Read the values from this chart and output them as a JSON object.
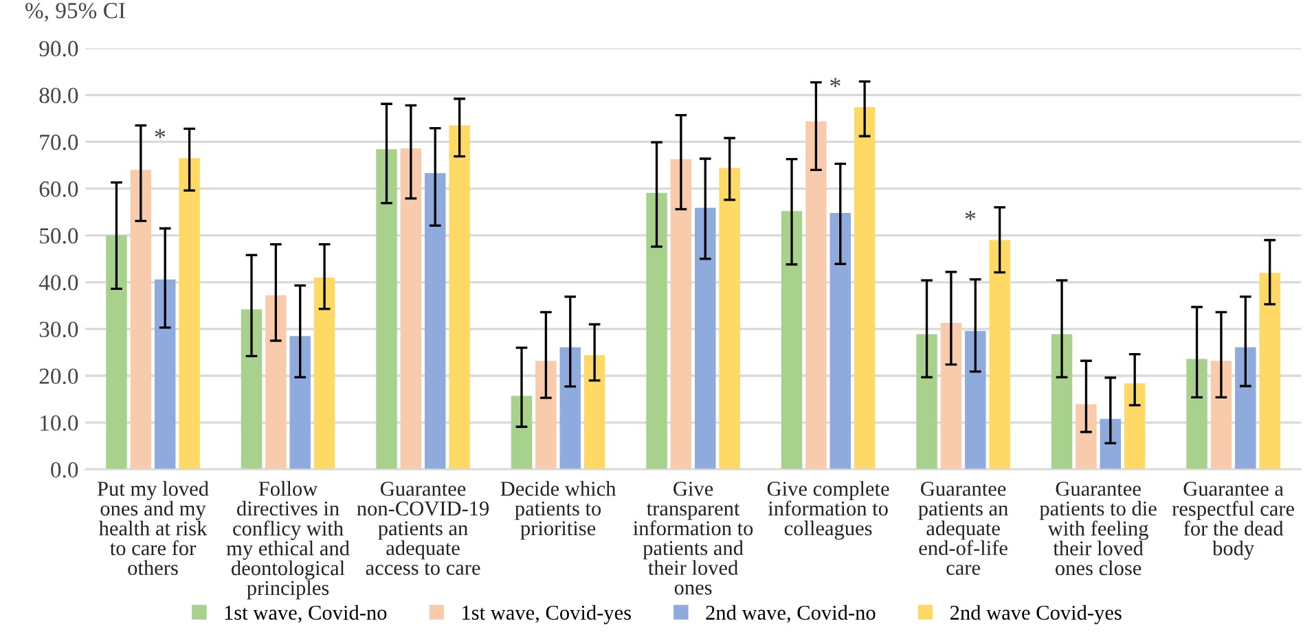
{
  "chart_data": {
    "type": "bar",
    "ylabel": "%, 95% CI",
    "categories": [
      "Put my loved ones and my health at risk to care for others",
      "Follow directives in conflicy with my ethical and deontological principles",
      "Guarantee non-COVID-19 patients an adequate access to care",
      "Decide which patients to prioritise",
      "Give transparent information to patients and their loved ones",
      "Give complete information to colleagues",
      "Guarantee patients an adequate end-of-life care",
      "Guarantee patients to die with feeling their loved ones close",
      "Guarantee a respectful care for the dead body"
    ],
    "series": [
      {
        "name": "1st wave, Covid-no",
        "color": "#a9d18e",
        "values": [
          50.0,
          34.2,
          68.4,
          15.7,
          59.1,
          55.2,
          28.9,
          28.9,
          23.6
        ],
        "errors": [
          [
            38.6,
            61.3
          ],
          [
            24.2,
            45.8
          ],
          [
            56.9,
            78.1
          ],
          [
            9.1,
            26.0
          ],
          [
            47.6,
            69.9
          ],
          [
            43.8,
            66.3
          ],
          [
            19.7,
            40.4
          ],
          [
            19.7,
            40.4
          ],
          [
            15.4,
            34.7
          ]
        ]
      },
      {
        "name": "1st wave, Covid-yes",
        "color": "#f8cbad",
        "values": [
          64.0,
          37.2,
          68.6,
          23.2,
          66.3,
          74.4,
          31.3,
          13.9,
          23.2
        ],
        "errors": [
          [
            53.1,
            73.5
          ],
          [
            27.5,
            48.1
          ],
          [
            57.9,
            77.8
          ],
          [
            15.3,
            33.6
          ],
          [
            55.6,
            75.7
          ],
          [
            64.0,
            82.7
          ],
          [
            22.4,
            42.2
          ],
          [
            8.0,
            23.2
          ],
          [
            15.4,
            33.6
          ]
        ]
      },
      {
        "name": "2nd wave, Covid-no",
        "color": "#8faadc",
        "values": [
          40.6,
          28.5,
          63.3,
          26.1,
          55.9,
          54.8,
          29.6,
          10.8,
          26.1
        ],
        "errors": [
          [
            30.3,
            51.5
          ],
          [
            19.7,
            39.3
          ],
          [
            52.1,
            72.9
          ],
          [
            17.7,
            36.9
          ],
          [
            45.0,
            66.4
          ],
          [
            43.9,
            65.3
          ],
          [
            20.9,
            40.6
          ],
          [
            5.6,
            19.6
          ],
          [
            17.8,
            36.9
          ]
        ]
      },
      {
        "name": "2nd wave Covid-yes",
        "color": "#ffd966",
        "values": [
          66.5,
          41.0,
          73.5,
          24.4,
          64.4,
          77.4,
          49.0,
          18.4,
          42.0
        ],
        "errors": [
          [
            59.6,
            72.8
          ],
          [
            34.3,
            48.1
          ],
          [
            66.9,
            79.2
          ],
          [
            19.0,
            31.0
          ],
          [
            57.6,
            70.8
          ],
          [
            71.2,
            82.9
          ],
          [
            42.1,
            56.0
          ],
          [
            13.7,
            24.6
          ],
          [
            35.3,
            49.0
          ]
        ]
      }
    ],
    "ylim": [
      0,
      90
    ],
    "yticks": [
      {
        "value": 0,
        "label": "0.0"
      },
      {
        "value": 10,
        "label": "10.0"
      },
      {
        "value": 20,
        "label": "20.0"
      },
      {
        "value": 30,
        "label": "30.0"
      },
      {
        "value": 40,
        "label": "40.0"
      },
      {
        "value": 50,
        "label": "50.0"
      },
      {
        "value": 60,
        "label": "60.0"
      },
      {
        "value": 70,
        "label": "70.0"
      },
      {
        "value": 80,
        "label": "80.0"
      },
      {
        "value": 90,
        "label": "90.0"
      }
    ],
    "annotations": [
      "*",
      "*",
      "*"
    ],
    "grid": "y",
    "legend": "bottom"
  }
}
